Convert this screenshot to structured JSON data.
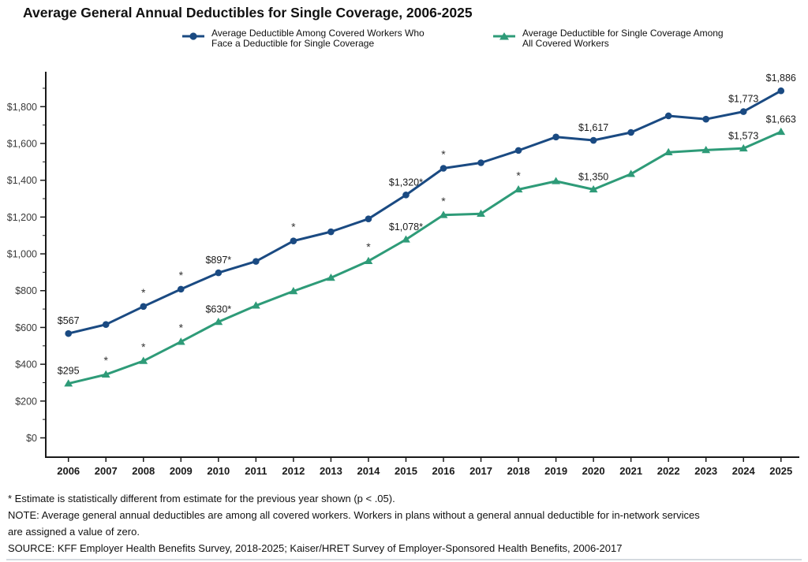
{
  "title": "Average General Annual Deductibles for Single Coverage, 2006-2025",
  "legend": [
    {
      "marker": "circle-icon",
      "color": "#1a4a82",
      "label_line1": "Average Deductible Among Covered Workers Who",
      "label_line2": "Face a Deductible for Single Coverage"
    },
    {
      "marker": "triangle-icon",
      "color": "#2e9b78",
      "label_line1": "Average Deductible for Single Coverage Among",
      "label_line2": "All Covered Workers"
    }
  ],
  "chart_data": {
    "type": "line",
    "title": "Average General Annual Deductibles for Single Coverage, 2006-2025",
    "xlabel": "",
    "ylabel": "",
    "ylim": [
      0,
      1900
    ],
    "grid": false,
    "legend_position": "top",
    "x": [
      "2006",
      "2007",
      "2008",
      "2009",
      "2010",
      "2011",
      "2012",
      "2013",
      "2014",
      "2015",
      "2016",
      "2017",
      "2018",
      "2019",
      "2020",
      "2021",
      "2022",
      "2023",
      "2024",
      "2025"
    ],
    "yticks": [
      {
        "value": 0,
        "label": "$0"
      },
      {
        "value": 200,
        "label": "$200"
      },
      {
        "value": 400,
        "label": "$400"
      },
      {
        "value": 600,
        "label": "$600"
      },
      {
        "value": 800,
        "label": "$800"
      },
      {
        "value": 1000,
        "label": "$1,000"
      },
      {
        "value": 1200,
        "label": "$1,200"
      },
      {
        "value": 1400,
        "label": "$1,400"
      },
      {
        "value": 1600,
        "label": "$1,600"
      },
      {
        "value": 1800,
        "label": "$1,800"
      }
    ],
    "minor_tick_step": 100,
    "series": [
      {
        "name": "Average Deductible Among Covered Workers Who Face a Deductible for Single Coverage",
        "color": "#1a4a82",
        "marker": "circle",
        "values": [
          567,
          616,
          714,
          808,
          897,
          959,
          1070,
          1120,
          1190,
          1320,
          1465,
          1495,
          1562,
          1635,
          1617,
          1660,
          1750,
          1732,
          1773,
          1886
        ],
        "point_labels": {
          "2006": "$567",
          "2010": "$897*",
          "2015": "$1,320*",
          "2020": "$1,617",
          "2024": "$1,773",
          "2025": "$1,886"
        },
        "asterisk_years": [
          "2008",
          "2009",
          "2012",
          "2016"
        ]
      },
      {
        "name": "Average Deductible for Single Coverage Among All Covered Workers",
        "color": "#2e9b78",
        "marker": "triangle",
        "values": [
          295,
          344,
          418,
          522,
          630,
          719,
          797,
          870,
          961,
          1078,
          1211,
          1218,
          1350,
          1395,
          1350,
          1434,
          1552,
          1564,
          1573,
          1663
        ],
        "point_labels": {
          "2006": "$295",
          "2010": "$630*",
          "2015": "$1,078*",
          "2020": "$1,350",
          "2024": "$1,573",
          "2025": "$1,663"
        },
        "asterisk_years": [
          "2007",
          "2008",
          "2009",
          "2014",
          "2016",
          "2018"
        ]
      }
    ]
  },
  "footnotes": [
    "* Estimate is statistically different from estimate for the previous year shown (p < .05).",
    "NOTE: Average general annual deductibles are among all covered workers. Workers in plans without a general annual deductible for in-network services",
    "are assigned a value of zero.",
    "SOURCE: KFF Employer Health Benefits Survey, 2018-2025; Kaiser/HRET Survey of Employer-Sponsored Health Benefits, 2006-2017"
  ]
}
